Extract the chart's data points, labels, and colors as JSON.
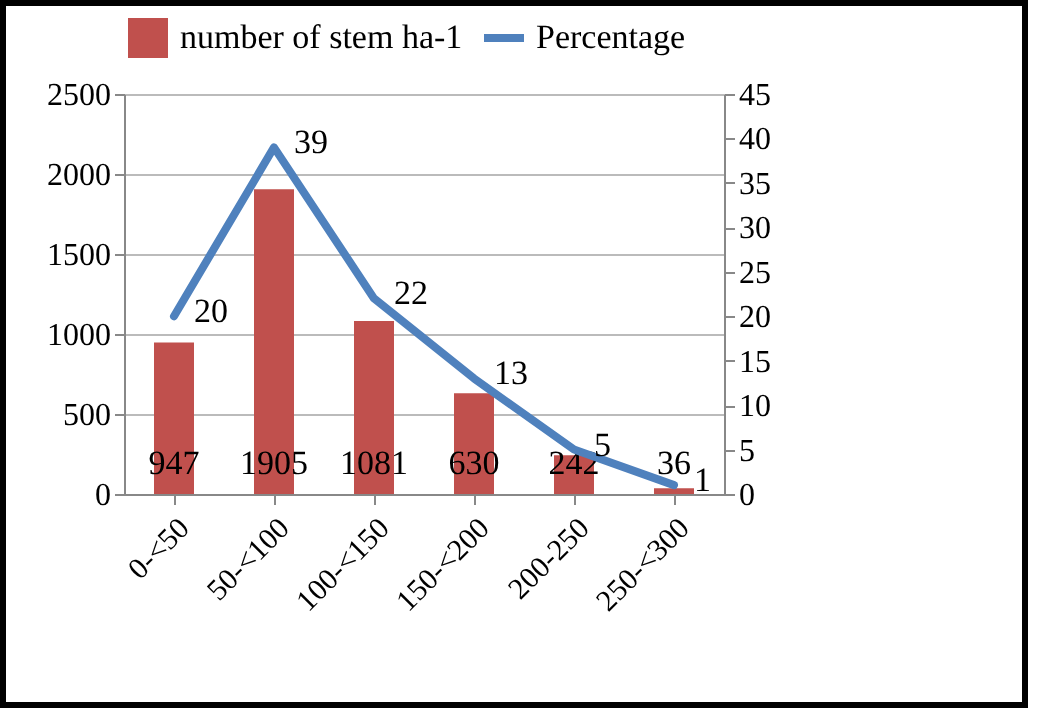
{
  "chart_data": {
    "type": "bar",
    "categories": [
      "0-<50",
      "50-<100",
      "100-<150",
      "150-<200",
      "200-250",
      "250-<300"
    ],
    "series": [
      {
        "name": "number of stem ha-1",
        "color": "#c0504d",
        "values": [
          947,
          1905,
          1081,
          630,
          242,
          36
        ]
      },
      {
        "name": "Percentage",
        "type": "line",
        "axis": "y2",
        "color": "#4f81bd",
        "values": [
          20,
          39,
          22,
          13,
          5,
          1
        ]
      }
    ],
    "ylim": [
      0,
      2500
    ],
    "yticks": [
      0,
      500,
      1000,
      1500,
      2000,
      2500
    ],
    "y2lim": [
      0,
      45
    ],
    "y2ticks": [
      0,
      5,
      10,
      15,
      20,
      25,
      30,
      35,
      40,
      45
    ],
    "data_labels": true,
    "grid": "y",
    "legend": "top"
  }
}
